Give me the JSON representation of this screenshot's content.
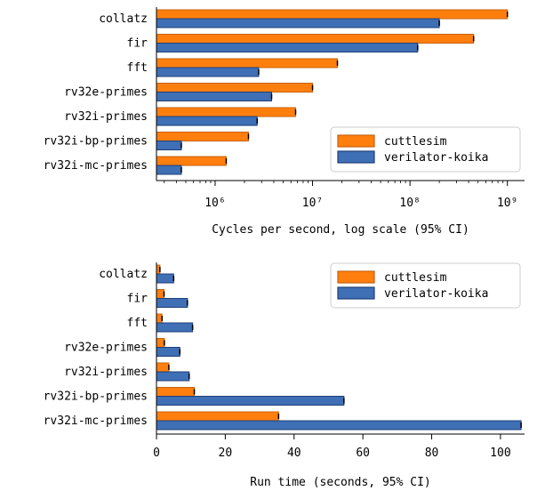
{
  "colors": {
    "cuttlesim": "#ff7f0e",
    "cuttlesim_edge": "#c8620a",
    "verilator": "#3f6fb5",
    "verilator_edge": "#1f3f78"
  },
  "chart_data": [
    {
      "type": "bar",
      "orientation": "horizontal",
      "categories": [
        "collatz",
        "fir",
        "fft",
        "rv32e-primes",
        "rv32i-primes",
        "rv32i-bp-primes",
        "rv32i-mc-primes"
      ],
      "series": [
        {
          "name": "cuttlesim",
          "values": [
            1000000000,
            450000000,
            18000000,
            10000000,
            6700000,
            2200000,
            1300000
          ]
        },
        {
          "name": "verilator-koika",
          "values": [
            200000000,
            120000000,
            2800000,
            3800000,
            2700000,
            450000,
            450000
          ]
        }
      ],
      "xscale": "log",
      "xlim": [
        250000,
        1500000000
      ],
      "xticks": [
        {
          "value": 1000000,
          "label": "10⁶"
        },
        {
          "value": 10000000,
          "label": "10⁷"
        },
        {
          "value": 100000000,
          "label": "10⁸"
        },
        {
          "value": 1000000000,
          "label": "10⁹"
        }
      ],
      "xlabel": "Cycles per second, log scale (95% CI)",
      "legend_position": "bottom-right"
    },
    {
      "type": "bar",
      "orientation": "horizontal",
      "categories": [
        "collatz",
        "fir",
        "fft",
        "rv32e-primes",
        "rv32i-primes",
        "rv32i-bp-primes",
        "rv32i-mc-primes"
      ],
      "series": [
        {
          "name": "cuttlesim",
          "values": [
            1.0,
            2.2,
            1.6,
            2.3,
            3.6,
            11,
            35.5
          ]
        },
        {
          "name": "verilator-koika",
          "values": [
            5,
            9,
            10.5,
            6.8,
            9.5,
            54.5,
            106
          ]
        }
      ],
      "xscale": "linear",
      "xlim": [
        0,
        107
      ],
      "xticks": [
        {
          "value": 0,
          "label": "0"
        },
        {
          "value": 20,
          "label": "20"
        },
        {
          "value": 40,
          "label": "40"
        },
        {
          "value": 60,
          "label": "60"
        },
        {
          "value": 80,
          "label": "80"
        },
        {
          "value": 100,
          "label": "100"
        }
      ],
      "xlabel": "Run time (seconds, 95% CI)",
      "legend_position": "top-right"
    }
  ]
}
